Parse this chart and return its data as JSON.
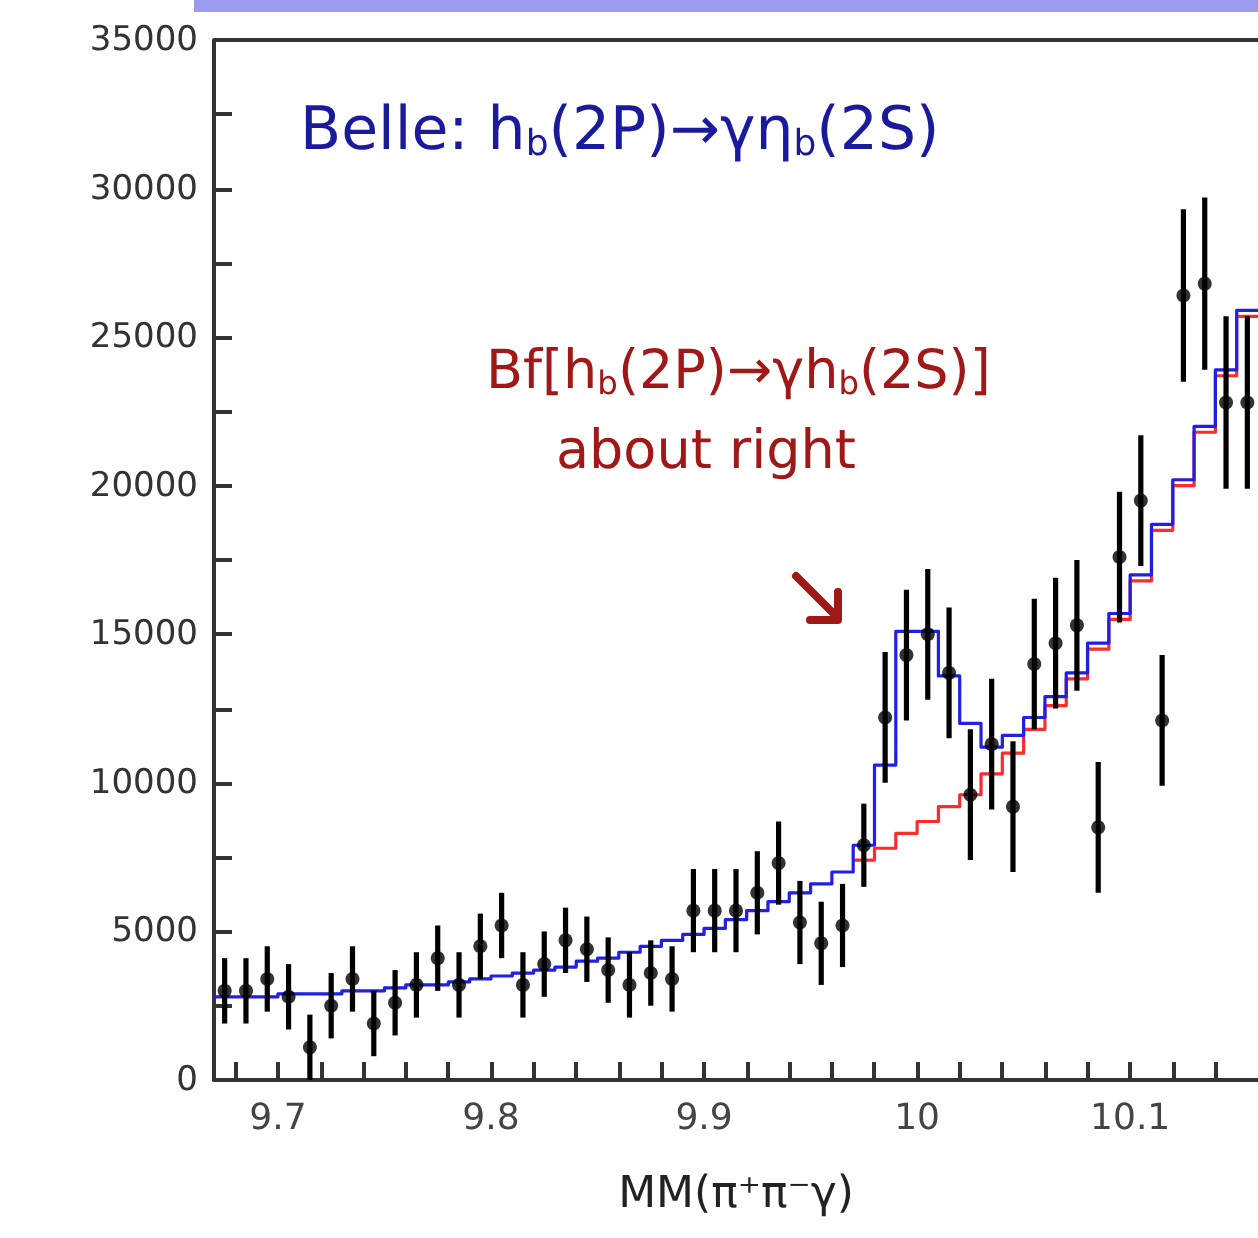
{
  "chart_data": {
    "type": "scatter",
    "annotations": [
      "Belle: h$_{b}$(2P)→γη$_{b}$(2S)",
      "Bf[h$_{b}$(2P)→γh$_{b}$(2S)]",
      "about right"
    ],
    "xlabel": "MM(π⁺π⁻γ)",
    "xlim": [
      9.67,
      10.16
    ],
    "xticks": [
      {
        "value": 9.68,
        "label": null
      },
      {
        "value": 9.7,
        "label": "9.7"
      },
      {
        "value": 9.72,
        "label": null
      },
      {
        "value": 9.74,
        "label": null
      },
      {
        "value": 9.76,
        "label": null
      },
      {
        "value": 9.78,
        "label": null
      },
      {
        "value": 9.8,
        "label": "9.8"
      },
      {
        "value": 9.82,
        "label": null
      },
      {
        "value": 9.84,
        "label": null
      },
      {
        "value": 9.86,
        "label": null
      },
      {
        "value": 9.88,
        "label": null
      },
      {
        "value": 9.9,
        "label": "9.9"
      },
      {
        "value": 9.92,
        "label": null
      },
      {
        "value": 9.94,
        "label": null
      },
      {
        "value": 9.96,
        "label": null
      },
      {
        "value": 9.98,
        "label": null
      },
      10,
      {
        "value": 10.02,
        "label": null
      },
      {
        "value": 10.04,
        "label": null
      },
      {
        "value": 10.06,
        "label": null
      },
      {
        "value": 10.08,
        "label": null
      },
      {
        "value": 10.1,
        "label": "10.1"
      },
      {
        "value": 10.12,
        "label": null
      },
      {
        "value": 10.14,
        "label": null
      }
    ],
    "ylim": [
      0,
      35000
    ],
    "yticks": [
      0,
      {
        "value": 2500,
        "label": null
      },
      5000,
      {
        "value": 7500,
        "label": null
      },
      10000,
      {
        "value": 12500,
        "label": null
      },
      15000,
      {
        "value": 17500,
        "label": null
      },
      20000,
      {
        "value": 22500,
        "label": null
      },
      25000,
      {
        "value": 27500,
        "label": null
      },
      30000,
      {
        "value": 32500,
        "label": null
      },
      35000
    ],
    "grid": false,
    "marker": "circle",
    "series": [
      {
        "type": "step",
        "color": "#ff2a2a",
        "marker": "none",
        "x": [
          9.97,
          9.98,
          9.99,
          10.0,
          10.01,
          10.02,
          10.03,
          10.04,
          10.05,
          10.06,
          10.07,
          10.08,
          10.09,
          10.1,
          10.11,
          10.12,
          10.13,
          10.14,
          10.15,
          10.16
        ],
        "values": [
          7400,
          7800,
          8300,
          8700,
          9200,
          9600,
          10300,
          11000,
          11800,
          12600,
          13500,
          14500,
          15500,
          16800,
          18500,
          20000,
          21800,
          23700,
          25700,
          25700
        ]
      },
      {
        "type": "step",
        "color": "#1f1fe6",
        "marker": "none",
        "x": [
          9.67,
          9.68,
          9.69,
          9.7,
          9.71,
          9.72,
          9.73,
          9.74,
          9.75,
          9.76,
          9.77,
          9.78,
          9.79,
          9.8,
          9.81,
          9.82,
          9.83,
          9.84,
          9.85,
          9.86,
          9.87,
          9.88,
          9.89,
          9.9,
          9.91,
          9.92,
          9.93,
          9.94,
          9.95,
          9.96,
          9.97,
          9.98,
          9.99,
          10.0,
          10.01,
          10.02,
          10.03,
          10.04,
          10.05,
          10.06,
          10.07,
          10.08,
          10.09,
          10.1,
          10.11,
          10.12,
          10.13,
          10.14,
          10.15,
          10.16
        ],
        "values": [
          2800,
          2800,
          2800,
          2900,
          2900,
          2900,
          3000,
          3000,
          3100,
          3200,
          3200,
          3300,
          3400,
          3500,
          3600,
          3700,
          3800,
          4000,
          4100,
          4300,
          4500,
          4700,
          4900,
          5100,
          5400,
          5700,
          6000,
          6300,
          6600,
          7000,
          7900,
          10600,
          15100,
          15100,
          13600,
          12000,
          11200,
          11600,
          12200,
          12900,
          13700,
          14700,
          15700,
          17000,
          18700,
          20200,
          22000,
          23900,
          25900,
          25900
        ]
      },
      {
        "color": "#000000",
        "x": [
          9.675,
          9.685,
          9.695,
          9.705,
          9.715,
          9.725,
          9.735,
          9.745,
          9.755,
          9.765,
          9.775,
          9.785,
          9.795,
          9.805,
          9.815,
          9.825,
          9.835,
          9.845,
          9.855,
          9.865,
          9.875,
          9.885,
          9.895,
          9.905,
          9.915,
          9.925,
          9.935,
          9.945,
          9.955,
          9.965,
          9.975,
          9.985,
          9.995,
          10.005,
          10.015,
          10.025,
          10.035,
          10.045,
          10.055,
          10.065,
          10.075,
          10.085,
          10.095,
          10.105,
          10.115,
          10.125,
          10.135,
          10.145,
          10.155
        ],
        "values": [
          3000,
          3000,
          3400,
          2800,
          1100,
          2500,
          3400,
          1900,
          2600,
          3200,
          4100,
          3200,
          4500,
          5200,
          3200,
          3900,
          4700,
          4400,
          3700,
          3200,
          3600,
          3400,
          5700,
          5700,
          5700,
          6300,
          7300,
          5300,
          4600,
          5200,
          7900,
          12200,
          14300,
          15000,
          13700,
          9600,
          11300,
          9200,
          14000,
          14700,
          15300,
          8500,
          17600,
          19500,
          12100,
          26400,
          26800,
          22800,
          22800
        ],
        "errors": [
          1100,
          1100,
          1100,
          1100,
          1100,
          1100,
          1100,
          1100,
          1100,
          1100,
          1100,
          1100,
          1100,
          1100,
          1100,
          1100,
          1100,
          1100,
          1100,
          1100,
          1100,
          1100,
          1400,
          1400,
          1400,
          1400,
          1400,
          1400,
          1400,
          1400,
          1400,
          2200,
          2200,
          2200,
          2200,
          2200,
          2200,
          2200,
          2200,
          2200,
          2200,
          2200,
          2200,
          2200,
          2200,
          2900,
          2900,
          2900,
          2900
        ]
      }
    ]
  }
}
